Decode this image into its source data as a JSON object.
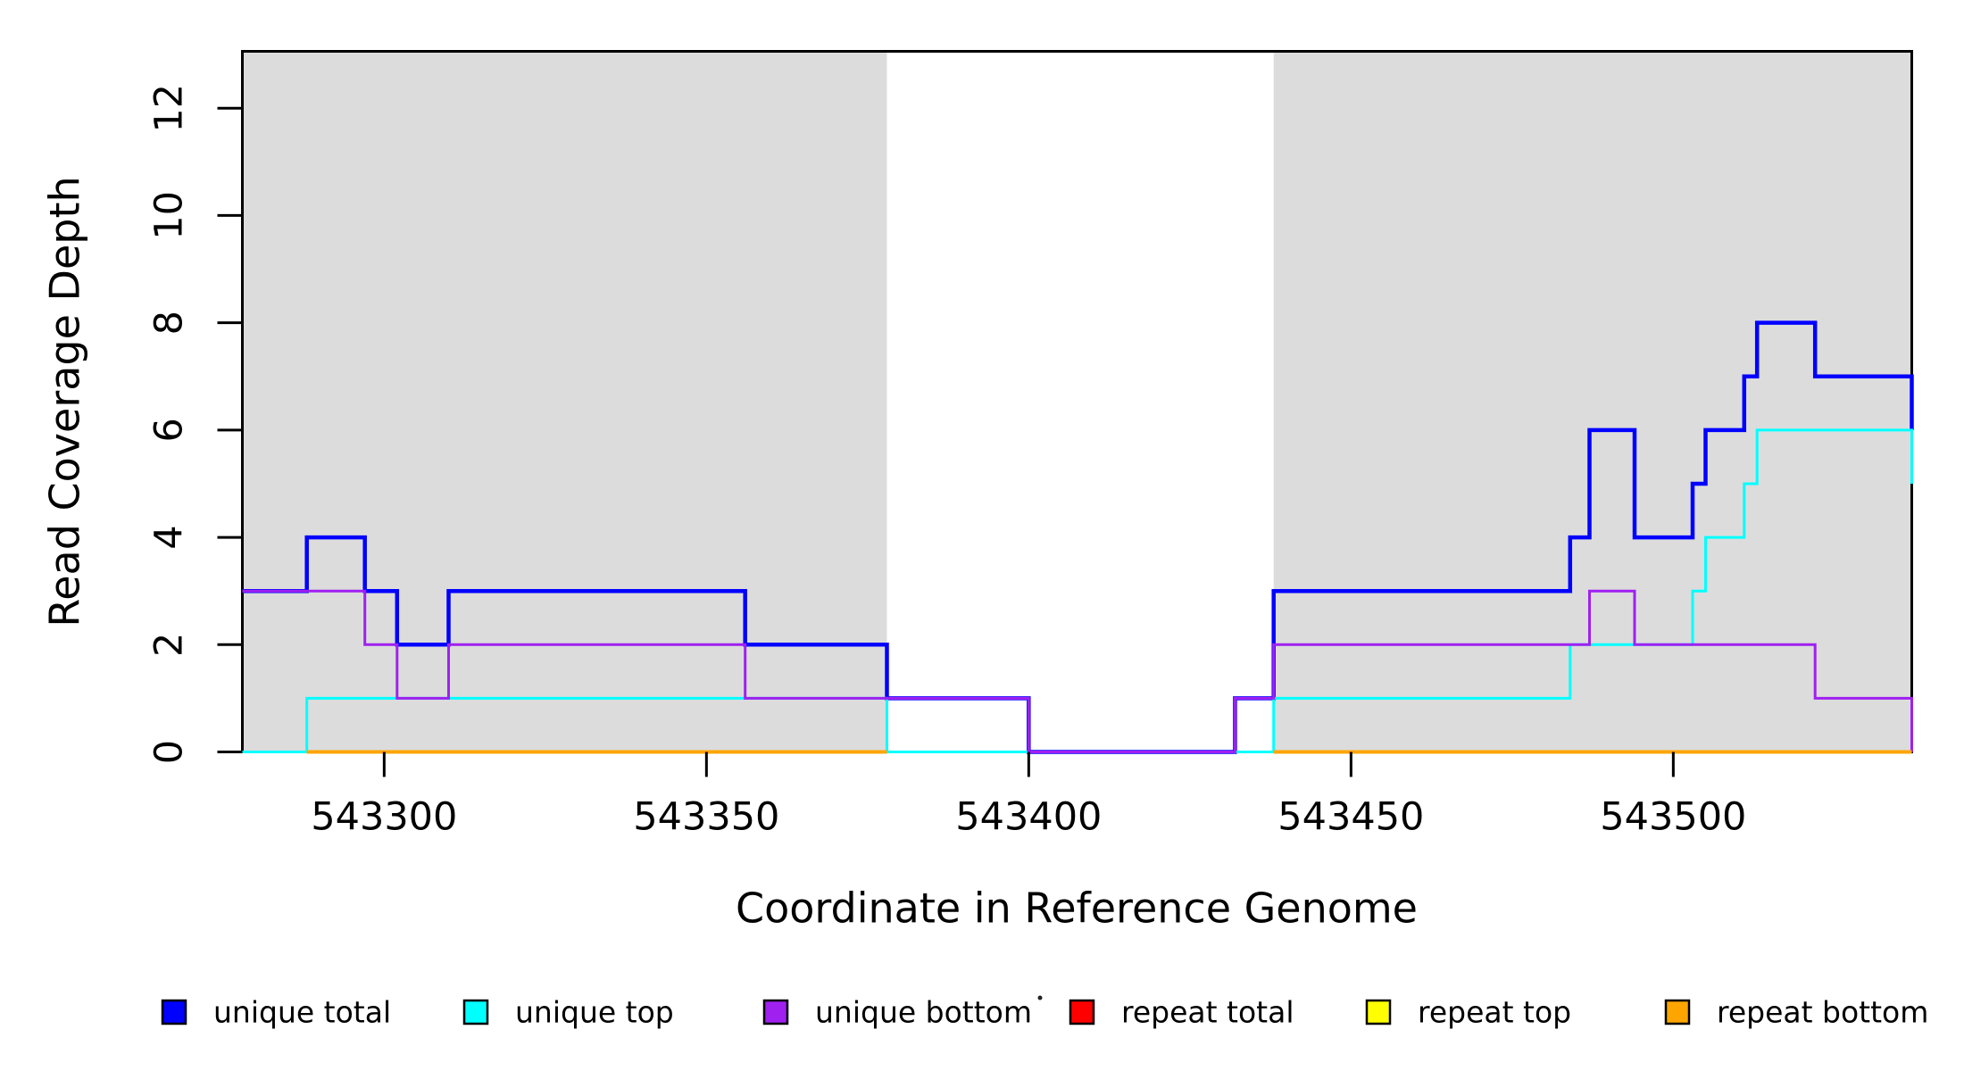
{
  "chart_data": {
    "type": "line",
    "subtype": "step-post",
    "title": "",
    "xlabel": "Coordinate in Reference Genome",
    "ylabel": "Read Coverage Depth",
    "xlim": [
      543278,
      543537
    ],
    "ylim": [
      0,
      13.06
    ],
    "x_ticks": [
      543300,
      543350,
      543400,
      543450,
      543500
    ],
    "y_ticks": [
      0,
      2,
      4,
      6,
      8,
      10,
      12
    ],
    "grid": false,
    "legend_position": "bottom",
    "shaded_regions": [
      {
        "name": "repeat-region-left",
        "x0": 543278,
        "x1": 543378,
        "color": "#DCDCDC"
      },
      {
        "name": "repeat-region-right",
        "x0": 543438,
        "x1": 543537,
        "color": "#DCDCDC"
      }
    ],
    "series": [
      {
        "name": "unique total",
        "color": "#0000FF",
        "stroke_width": 4.5,
        "points": [
          [
            543278,
            3
          ],
          [
            543288,
            4
          ],
          [
            543297,
            3
          ],
          [
            543302,
            2
          ],
          [
            543310,
            3
          ],
          [
            543356,
            2
          ],
          [
            543378,
            1
          ],
          [
            543400,
            0
          ],
          [
            543432,
            1
          ],
          [
            543438,
            3
          ],
          [
            543484,
            4
          ],
          [
            543487,
            6
          ],
          [
            543494,
            4
          ],
          [
            543503,
            5
          ],
          [
            543505,
            6
          ],
          [
            543511,
            7
          ],
          [
            543513,
            8
          ],
          [
            543522,
            7
          ],
          [
            543537,
            6
          ]
        ]
      },
      {
        "name": "unique top",
        "color": "#00FFFF",
        "stroke_width": 3,
        "points": [
          [
            543278,
            0
          ],
          [
            543288,
            1
          ],
          [
            543378,
            0
          ],
          [
            543438,
            1
          ],
          [
            543484,
            2
          ],
          [
            543503,
            3
          ],
          [
            543505,
            4
          ],
          [
            543511,
            5
          ],
          [
            543513,
            6
          ],
          [
            543537,
            5
          ]
        ]
      },
      {
        "name": "unique bottom",
        "color": "#A020F0",
        "stroke_width": 3,
        "points": [
          [
            543278,
            3
          ],
          [
            543297,
            2
          ],
          [
            543302,
            1
          ],
          [
            543310,
            2
          ],
          [
            543356,
            1
          ],
          [
            543400,
            0
          ],
          [
            543432,
            1
          ],
          [
            543438,
            2
          ],
          [
            543487,
            3
          ],
          [
            543494,
            2
          ],
          [
            543522,
            1
          ],
          [
            543537,
            0
          ]
        ]
      },
      {
        "name": "repeat total",
        "color": "#FF0000",
        "stroke_width": 3,
        "segments": [
          [
            [
              543288,
              0
            ],
            [
              543378,
              0
            ]
          ],
          [
            [
              543438,
              0
            ],
            [
              543537,
              0
            ]
          ]
        ]
      },
      {
        "name": "repeat top",
        "color": "#FFFF00",
        "stroke_width": 3,
        "segments": [
          [
            [
              543288,
              0
            ],
            [
              543378,
              0
            ]
          ],
          [
            [
              543438,
              0
            ],
            [
              543537,
              0
            ]
          ]
        ]
      },
      {
        "name": "repeat bottom",
        "color": "#FFA500",
        "stroke_width": 4,
        "segments": [
          [
            [
              543288,
              0
            ],
            [
              543378,
              0
            ]
          ],
          [
            [
              543438,
              0
            ],
            [
              543537,
              0
            ]
          ]
        ]
      }
    ]
  },
  "legend": {
    "items": [
      {
        "label": "unique total",
        "color": "#0000FF"
      },
      {
        "label": "unique top",
        "color": "#00FFFF"
      },
      {
        "label": "unique bottom",
        "color": "#A020F0"
      },
      {
        "label": "repeat total",
        "color": "#FF0000"
      },
      {
        "label": "repeat top",
        "color": "#FFFF00"
      },
      {
        "label": "repeat bottom",
        "color": "#FFA500"
      }
    ]
  },
  "axis": {
    "color": "#000000",
    "x_label": "Coordinate in Reference Genome",
    "y_label": "Read Coverage Depth"
  }
}
